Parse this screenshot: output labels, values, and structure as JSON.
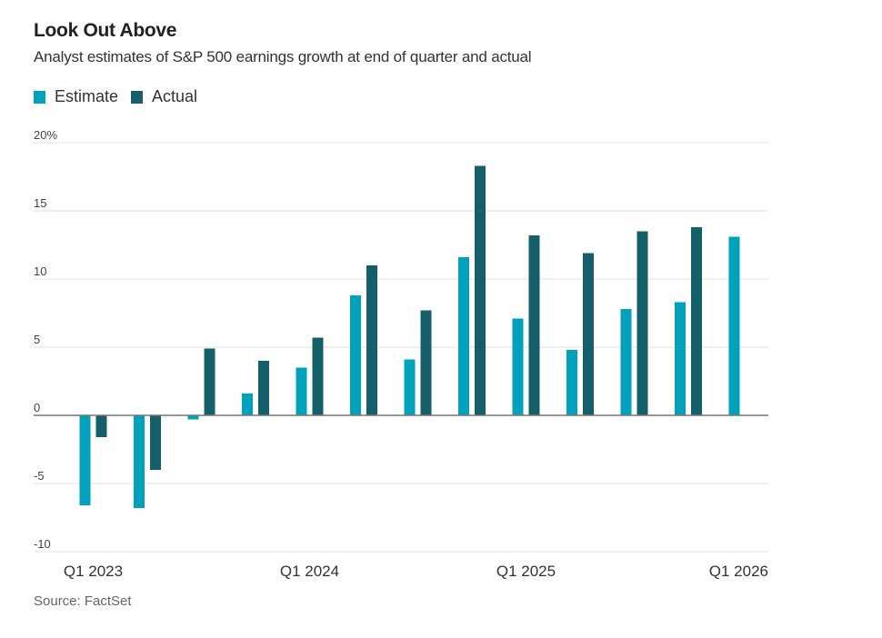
{
  "colors": {
    "estimate": "#00a1bd",
    "actual": "#155f6b",
    "grid": "#e6e6e6",
    "zero_line": "#777777"
  },
  "chart_data": {
    "type": "bar",
    "title": "Look Out Above",
    "subtitle": "Analyst estimates of S&P 500 earnings growth at end of quarter and actual",
    "xlabel": "",
    "ylabel": "",
    "ylim": [
      -10,
      20
    ],
    "yticks": [
      20,
      15,
      10,
      5,
      0,
      -5,
      -10
    ],
    "ytick_labels": [
      "20%",
      "15",
      "10",
      "5",
      "0",
      "-5",
      "-10"
    ],
    "grid": true,
    "legend_position": "top-left",
    "categories": [
      "Q1 2023",
      "Q2 2023",
      "Q3 2023",
      "Q4 2023",
      "Q1 2024",
      "Q2 2024",
      "Q3 2024",
      "Q4 2024",
      "Q1 2025",
      "Q2 2025",
      "Q3 2025",
      "Q4 2025",
      "Q1 2026"
    ],
    "xtick_labels": [
      {
        "index": 0,
        "label": "Q1 2023"
      },
      {
        "index": 4,
        "label": "Q1 2024"
      },
      {
        "index": 8,
        "label": "Q1 2025"
      },
      {
        "index": 12,
        "label": "Q1 2026"
      }
    ],
    "series": [
      {
        "name": "Estimate",
        "values": [
          -6.6,
          -6.8,
          -0.3,
          1.6,
          3.5,
          8.8,
          4.1,
          11.6,
          7.1,
          4.8,
          7.8,
          8.3,
          13.1
        ]
      },
      {
        "name": "Actual",
        "values": [
          -1.6,
          -4.0,
          4.9,
          4.0,
          5.7,
          11.0,
          7.7,
          18.3,
          13.2,
          11.9,
          13.5,
          13.8,
          null
        ]
      }
    ],
    "source": "Source: FactSet"
  }
}
